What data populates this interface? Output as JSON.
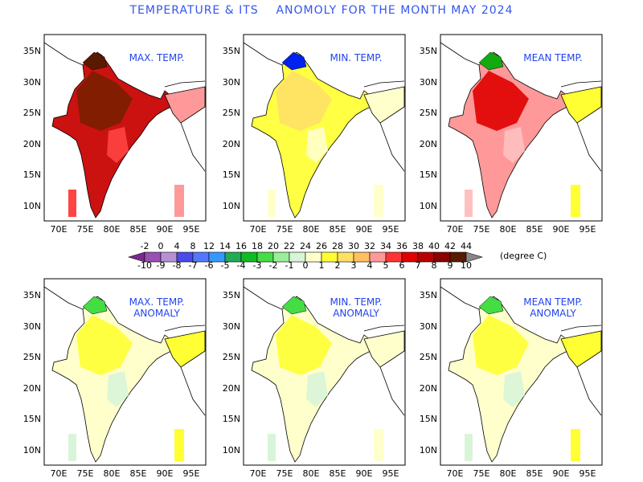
{
  "title": "TEMPERATURE & ITS    ANOMOLY FOR THE MONTH MAY 2024",
  "axes": {
    "lat_ticks": [
      "35N",
      "30N",
      "25N",
      "20N",
      "15N",
      "10N"
    ],
    "lon_ticks": [
      "70E",
      "75E",
      "80E",
      "85E",
      "90E",
      "95E"
    ]
  },
  "panels": [
    {
      "id": "max",
      "label": "MAX. TEMP.",
      "kind": "absolute",
      "palette": "hot"
    },
    {
      "id": "min",
      "label": "MIN. TEMP.",
      "kind": "absolute",
      "palette": "mild"
    },
    {
      "id": "mean",
      "label": "MEAN TEMP.",
      "kind": "absolute",
      "palette": "warm"
    },
    {
      "id": "max_anom",
      "label": "MAX. TEMP.\nANOMALY",
      "kind": "anomaly",
      "palette": "anom1"
    },
    {
      "id": "min_anom",
      "label": "MIN. TEMP.\nANOMALY",
      "kind": "anomaly",
      "palette": "anom2"
    },
    {
      "id": "mean_anom",
      "label": "MEAN TEMP.\nANOMALY",
      "kind": "anomaly",
      "palette": "anom3"
    }
  ],
  "colorbar": {
    "absolute_labels": [
      "-2",
      "0",
      "4",
      "8",
      "12",
      "14",
      "16",
      "18",
      "20",
      "22",
      "24",
      "26",
      "28",
      "30",
      "32",
      "34",
      "36",
      "38",
      "40",
      "42",
      "44"
    ],
    "anomaly_labels": [
      "-10",
      "-9",
      "-8",
      "-7",
      "-6",
      "-5",
      "-4",
      "-3",
      "-2",
      "-1",
      "0",
      "1",
      "2",
      "3",
      "4",
      "5",
      "6",
      "7",
      "8",
      "9",
      "10"
    ],
    "unit": "(degree C)",
    "colors": [
      "#7b2a8c",
      "#9a4fb3",
      "#b68fd6",
      "#4a4ae8",
      "#5577ff",
      "#3399ff",
      "#22aa55",
      "#11bb22",
      "#44dd44",
      "#99ee99",
      "#d8f5d8",
      "#ffffcc",
      "#ffff33",
      "#ffe066",
      "#ffc060",
      "#ff9999",
      "#ff3333",
      "#e00000",
      "#b80000",
      "#8b0000",
      "#5a1a00",
      "#888888"
    ]
  }
}
